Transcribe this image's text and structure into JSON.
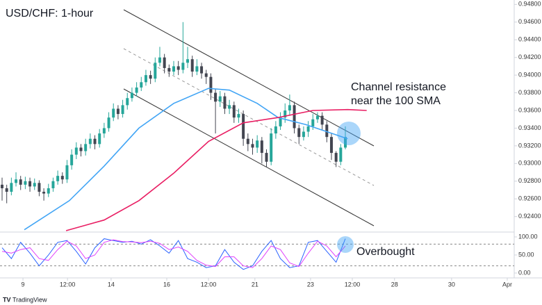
{
  "chart_data": [
    {
      "type": "candlestick",
      "title": "USD/CHF: 1-hour",
      "annotations": [
        "Channel resistance",
        "near the 100 SMA"
      ],
      "source": "TradingView",
      "up_color": "#26a69a",
      "down_color": "#434651",
      "xlim": [
        -0.45,
        110.4
      ],
      "ylim": [
        0.9224,
        0.9485
      ],
      "xticks": [
        {
          "value": 4.5,
          "label": "9"
        },
        {
          "value": 14.1,
          "label": "12:00"
        },
        {
          "value": 23.5,
          "label": "14"
        },
        {
          "value": 35.5,
          "label": "16"
        },
        {
          "value": 44.5,
          "label": "12:00"
        },
        {
          "value": 54.5,
          "label": "21"
        },
        {
          "value": 66.5,
          "label": "23"
        },
        {
          "value": 75.5,
          "label": "12:00"
        },
        {
          "value": 84.6,
          "label": "28"
        },
        {
          "value": 96.9,
          "label": "30"
        },
        {
          "value": 108.9,
          "label": "Apr"
        }
      ],
      "yticks": [
        {
          "value": 0.948,
          "label": "0.94800"
        },
        {
          "value": 0.946,
          "label": "0.94600"
        },
        {
          "value": 0.944,
          "label": "0.94400"
        },
        {
          "value": 0.942,
          "label": "0.94200"
        },
        {
          "value": 0.94,
          "label": "0.94000"
        },
        {
          "value": 0.938,
          "label": "0.93800"
        },
        {
          "value": 0.936,
          "label": "0.93600"
        },
        {
          "value": 0.934,
          "label": "0.93400"
        },
        {
          "value": 0.932,
          "label": "0.93200"
        },
        {
          "value": 0.93,
          "label": "0.93000"
        },
        {
          "value": 0.928,
          "label": "0.92800"
        },
        {
          "value": 0.926,
          "label": "0.92600"
        },
        {
          "value": 0.924,
          "label": "0.92400"
        }
      ],
      "open": [
        0.9276,
        0.9272,
        0.9268,
        0.9278,
        0.9282,
        0.9276,
        0.928,
        0.9274,
        0.9278,
        0.9268,
        0.9266,
        0.9272,
        0.928,
        0.9286,
        0.9282,
        0.9298,
        0.931,
        0.9318,
        0.9314,
        0.9322,
        0.9328,
        0.9322,
        0.9334,
        0.934,
        0.9352,
        0.9362,
        0.9356,
        0.9366,
        0.9374,
        0.938,
        0.9386,
        0.9392,
        0.94,
        0.9396,
        0.9414,
        0.942,
        0.9408,
        0.9404,
        0.941,
        0.9406,
        0.9414,
        0.9418,
        0.9404,
        0.941,
        0.9402,
        0.9398,
        0.938,
        0.937,
        0.9376,
        0.9362,
        0.9366,
        0.9352,
        0.9356,
        0.9328,
        0.9322,
        0.9318,
        0.9326,
        0.9312,
        0.9302,
        0.9334,
        0.9342,
        0.9352,
        0.936,
        0.9366,
        0.934,
        0.933,
        0.9336,
        0.9342,
        0.935,
        0.9354,
        0.9344,
        0.933,
        0.9312,
        0.9302,
        0.9318
      ],
      "high": [
        0.9284,
        0.9276,
        0.9284,
        0.929,
        0.9286,
        0.9285,
        0.9284,
        0.9283,
        0.9281,
        0.9272,
        0.9277,
        0.9284,
        0.9292,
        0.929,
        0.9304,
        0.9316,
        0.9324,
        0.9322,
        0.9328,
        0.9334,
        0.9332,
        0.9339,
        0.9346,
        0.9358,
        0.9368,
        0.9366,
        0.9372,
        0.938,
        0.9386,
        0.9392,
        0.9398,
        0.9406,
        0.9405,
        0.942,
        0.9432,
        0.9424,
        0.9412,
        0.9416,
        0.9416,
        0.946,
        0.9432,
        0.9422,
        0.9418,
        0.9414,
        0.9406,
        0.9402,
        0.9384,
        0.9382,
        0.938,
        0.9372,
        0.937,
        0.9362,
        0.936,
        0.9334,
        0.9328,
        0.9332,
        0.933,
        0.9316,
        0.934,
        0.9348,
        0.9358,
        0.9368,
        0.9378,
        0.937,
        0.9344,
        0.9342,
        0.9348,
        0.9356,
        0.9358,
        0.9358,
        0.9348,
        0.9334,
        0.9314,
        0.9322,
        0.9342
      ],
      "low": [
        0.9258,
        0.9255,
        0.9264,
        0.9274,
        0.927,
        0.9271,
        0.9268,
        0.927,
        0.9263,
        0.9258,
        0.9262,
        0.9268,
        0.9276,
        0.9277,
        0.9278,
        0.9293,
        0.9305,
        0.9308,
        0.9309,
        0.9317,
        0.9316,
        0.9318,
        0.9329,
        0.9336,
        0.9348,
        0.935,
        0.9352,
        0.9361,
        0.937,
        0.9376,
        0.9382,
        0.9388,
        0.939,
        0.9392,
        0.941,
        0.9402,
        0.9398,
        0.94,
        0.94,
        0.9402,
        0.9408,
        0.9398,
        0.94,
        0.9396,
        0.939,
        0.9372,
        0.9334,
        0.9364,
        0.9356,
        0.9356,
        0.9346,
        0.9346,
        0.932,
        0.9314,
        0.931,
        0.9312,
        0.93,
        0.9296,
        0.9298,
        0.9328,
        0.9338,
        0.9346,
        0.9354,
        0.9334,
        0.9322,
        0.9326,
        0.933,
        0.9338,
        0.9346,
        0.9338,
        0.9324,
        0.9304,
        0.9296,
        0.9298,
        0.9316
      ],
      "close": [
        0.9272,
        0.9268,
        0.9278,
        0.9282,
        0.9276,
        0.928,
        0.9274,
        0.9278,
        0.9268,
        0.9266,
        0.9272,
        0.928,
        0.9286,
        0.9282,
        0.9298,
        0.931,
        0.9318,
        0.9314,
        0.9322,
        0.9328,
        0.9322,
        0.9334,
        0.934,
        0.9352,
        0.9362,
        0.9356,
        0.9366,
        0.9374,
        0.938,
        0.9386,
        0.9392,
        0.94,
        0.9396,
        0.9414,
        0.942,
        0.9408,
        0.9404,
        0.941,
        0.9406,
        0.9414,
        0.9418,
        0.9404,
        0.941,
        0.9402,
        0.9398,
        0.938,
        0.937,
        0.9376,
        0.9362,
        0.9366,
        0.9352,
        0.9356,
        0.9328,
        0.9322,
        0.9318,
        0.9326,
        0.9312,
        0.9302,
        0.9334,
        0.9342,
        0.9352,
        0.936,
        0.9366,
        0.934,
        0.933,
        0.9336,
        0.9342,
        0.935,
        0.9354,
        0.9344,
        0.933,
        0.9312,
        0.9302,
        0.9318,
        0.933
      ],
      "overlays": [
        {
          "color": "#42a5f5",
          "x": [
            4.8,
            14.5,
            22,
            29.5,
            37,
            44.5,
            49,
            55,
            59.5,
            65.5,
            70,
            74.5
          ],
          "values": [
            0.9225,
            0.9258,
            0.9297,
            0.934,
            0.9368,
            0.9385,
            0.9383,
            0.9368,
            0.9352,
            0.9344,
            0.9336,
            0.9328
          ]
        },
        {
          "color": "#e91e63",
          "x": [
            13.8,
            22,
            29.5,
            37,
            44.5,
            52,
            59.5,
            67,
            74.5,
            78.6
          ],
          "values": [
            0.9224,
            0.9236,
            0.9258,
            0.9289,
            0.9325,
            0.9346,
            0.9352,
            0.936,
            0.9361,
            0.936
          ]
        }
      ]
    },
    {
      "type": "line",
      "annotations": [
        "Overbought"
      ],
      "xlim": [
        -0.45,
        110.4
      ],
      "ylim": [
        -9.6,
        111.5
      ],
      "yticks": [
        {
          "value": 100,
          "label": "100.00"
        },
        {
          "value": 50,
          "label": "50.00"
        },
        {
          "value": 0,
          "label": "0.00"
        }
      ],
      "levels": [
        80,
        20
      ],
      "x": [
        0,
        2,
        4,
        6,
        8,
        10,
        12,
        14,
        16,
        18,
        20,
        22,
        24,
        26,
        28,
        30,
        32,
        34,
        36,
        38,
        40,
        42,
        44,
        46,
        48,
        50,
        52,
        54,
        56,
        58,
        60,
        62,
        64,
        66,
        68,
        70,
        72,
        74
      ],
      "series": [
        {
          "color": "#2962ff",
          "values": [
            70,
            40,
            85,
            55,
            20,
            50,
            85,
            90,
            60,
            25,
            70,
            95,
            90,
            85,
            88,
            80,
            92,
            75,
            55,
            90,
            40,
            30,
            15,
            20,
            65,
            30,
            10,
            20,
            60,
            90,
            40,
            15,
            20,
            85,
            90,
            60,
            30,
            95
          ]
        },
        {
          "color": "#e040fb",
          "values": [
            60,
            55,
            65,
            70,
            40,
            35,
            65,
            88,
            75,
            40,
            50,
            85,
            92,
            87,
            86,
            84,
            88,
            82,
            65,
            72,
            60,
            35,
            22,
            18,
            45,
            45,
            20,
            15,
            40,
            75,
            65,
            28,
            18,
            55,
            88,
            75,
            45,
            75
          ]
        }
      ]
    }
  ]
}
